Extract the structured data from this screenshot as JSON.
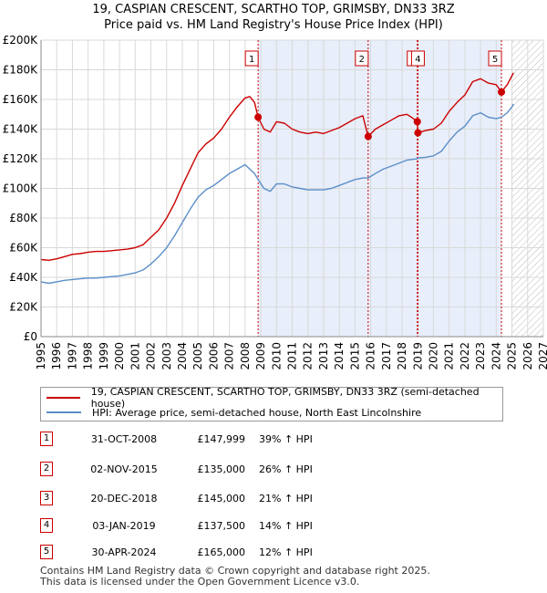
{
  "chart_data": {
    "type": "line",
    "title": "19, CASPIAN CRESCENT, SCARTHO TOP, GRIMSBY, DN33 3RZ",
    "subtitle": "Price paid vs. HM Land Registry's House Price Index (HPI)",
    "xlim": [
      1995,
      2027
    ],
    "ylim": [
      0,
      200000
    ],
    "x_ticks": [
      "1995",
      "1996",
      "1997",
      "1998",
      "1999",
      "2000",
      "2001",
      "2002",
      "2003",
      "2004",
      "2005",
      "2006",
      "2007",
      "2008",
      "2009",
      "2010",
      "2011",
      "2012",
      "2013",
      "2014",
      "2015",
      "2016",
      "2017",
      "2018",
      "2019",
      "2020",
      "2021",
      "2022",
      "2023",
      "2024",
      "2025",
      "2026",
      "2027"
    ],
    "y_ticks": [
      {
        "value": 0,
        "label": "£0"
      },
      {
        "value": 20000,
        "label": "£20K"
      },
      {
        "value": 40000,
        "label": "£40K"
      },
      {
        "value": 60000,
        "label": "£60K"
      },
      {
        "value": 80000,
        "label": "£80K"
      },
      {
        "value": 100000,
        "label": "£100K"
      },
      {
        "value": 120000,
        "label": "£120K"
      },
      {
        "value": 140000,
        "label": "£140K"
      },
      {
        "value": 160000,
        "label": "£160K"
      },
      {
        "value": 180000,
        "label": "£180K"
      },
      {
        "value": 200000,
        "label": "£200K"
      }
    ],
    "shaded_range": [
      2008.83,
      2024.33
    ],
    "hatched_from": 2025.0,
    "series": [
      {
        "name": "19, CASPIAN CRESCENT, SCARTHO TOP, GRIMSBY, DN33 3RZ (semi-detached house)",
        "color": "#cc0000",
        "points": [
          [
            1995.0,
            52000
          ],
          [
            1995.5,
            51500
          ],
          [
            1996.0,
            52500
          ],
          [
            1996.5,
            54000
          ],
          [
            1997.0,
            55500
          ],
          [
            1997.5,
            56000
          ],
          [
            1998.0,
            57000
          ],
          [
            1998.5,
            57500
          ],
          [
            1999.0,
            57500
          ],
          [
            1999.5,
            58000
          ],
          [
            2000.0,
            58500
          ],
          [
            2000.5,
            59000
          ],
          [
            2001.0,
            60000
          ],
          [
            2001.5,
            62000
          ],
          [
            2002.0,
            67000
          ],
          [
            2002.5,
            72000
          ],
          [
            2003.0,
            80000
          ],
          [
            2003.5,
            90000
          ],
          [
            2004.0,
            102000
          ],
          [
            2004.5,
            113000
          ],
          [
            2005.0,
            124000
          ],
          [
            2005.5,
            130000
          ],
          [
            2006.0,
            134000
          ],
          [
            2006.5,
            140000
          ],
          [
            2007.0,
            148000
          ],
          [
            2007.5,
            155000
          ],
          [
            2008.0,
            161000
          ],
          [
            2008.3,
            162000
          ],
          [
            2008.6,
            158000
          ],
          [
            2008.83,
            147999
          ],
          [
            2009.2,
            140000
          ],
          [
            2009.6,
            138000
          ],
          [
            2010.0,
            145000
          ],
          [
            2010.5,
            144000
          ],
          [
            2011.0,
            140000
          ],
          [
            2011.5,
            138000
          ],
          [
            2012.0,
            137000
          ],
          [
            2012.5,
            138000
          ],
          [
            2013.0,
            137000
          ],
          [
            2013.5,
            139000
          ],
          [
            2014.0,
            141000
          ],
          [
            2014.5,
            144000
          ],
          [
            2015.0,
            147000
          ],
          [
            2015.5,
            149000
          ],
          [
            2015.84,
            135000
          ],
          [
            2016.3,
            140000
          ],
          [
            2016.8,
            143000
          ],
          [
            2017.3,
            146000
          ],
          [
            2017.8,
            149000
          ],
          [
            2018.3,
            150000
          ],
          [
            2018.6,
            148000
          ],
          [
            2018.97,
            145000
          ],
          [
            2019.01,
            137500
          ],
          [
            2019.5,
            139000
          ],
          [
            2020.0,
            140000
          ],
          [
            2020.5,
            144000
          ],
          [
            2021.0,
            152000
          ],
          [
            2021.5,
            158000
          ],
          [
            2022.0,
            163000
          ],
          [
            2022.5,
            172000
          ],
          [
            2023.0,
            174000
          ],
          [
            2023.5,
            171000
          ],
          [
            2024.0,
            170000
          ],
          [
            2024.33,
            165000
          ],
          [
            2024.7,
            170000
          ],
          [
            2025.0,
            176000
          ],
          [
            2025.1,
            178000
          ]
        ]
      },
      {
        "name": "HPI: Average price, semi-detached house, North East Lincolnshire",
        "color": "#5b8ec9",
        "points": [
          [
            1995.0,
            37000
          ],
          [
            1995.5,
            36000
          ],
          [
            1996.0,
            37000
          ],
          [
            1996.5,
            38000
          ],
          [
            1997.0,
            38500
          ],
          [
            1997.5,
            39000
          ],
          [
            1998.0,
            39500
          ],
          [
            1998.5,
            39500
          ],
          [
            1999.0,
            40000
          ],
          [
            1999.5,
            40500
          ],
          [
            2000.0,
            41000
          ],
          [
            2000.5,
            42000
          ],
          [
            2001.0,
            43000
          ],
          [
            2001.5,
            45000
          ],
          [
            2002.0,
            49000
          ],
          [
            2002.5,
            54000
          ],
          [
            2003.0,
            60000
          ],
          [
            2003.5,
            68000
          ],
          [
            2004.0,
            77000
          ],
          [
            2004.5,
            86000
          ],
          [
            2005.0,
            94000
          ],
          [
            2005.5,
            99000
          ],
          [
            2006.0,
            102000
          ],
          [
            2006.5,
            106000
          ],
          [
            2007.0,
            110000
          ],
          [
            2007.5,
            113000
          ],
          [
            2008.0,
            116000
          ],
          [
            2008.3,
            113000
          ],
          [
            2008.6,
            110000
          ],
          [
            2008.83,
            106000
          ],
          [
            2009.2,
            100000
          ],
          [
            2009.6,
            98000
          ],
          [
            2010.0,
            103000
          ],
          [
            2010.5,
            103000
          ],
          [
            2011.0,
            101000
          ],
          [
            2011.5,
            100000
          ],
          [
            2012.0,
            99000
          ],
          [
            2012.5,
            99000
          ],
          [
            2013.0,
            99000
          ],
          [
            2013.5,
            100000
          ],
          [
            2014.0,
            102000
          ],
          [
            2014.5,
            104000
          ],
          [
            2015.0,
            106000
          ],
          [
            2015.5,
            107000
          ],
          [
            2015.84,
            107000
          ],
          [
            2016.3,
            110000
          ],
          [
            2016.8,
            113000
          ],
          [
            2017.3,
            115000
          ],
          [
            2017.8,
            117000
          ],
          [
            2018.3,
            119000
          ],
          [
            2018.6,
            119500
          ],
          [
            2018.97,
            120000
          ],
          [
            2019.01,
            120500
          ],
          [
            2019.5,
            121000
          ],
          [
            2020.0,
            122000
          ],
          [
            2020.5,
            125000
          ],
          [
            2021.0,
            132000
          ],
          [
            2021.5,
            138000
          ],
          [
            2022.0,
            142000
          ],
          [
            2022.5,
            149000
          ],
          [
            2023.0,
            151000
          ],
          [
            2023.5,
            148000
          ],
          [
            2024.0,
            147000
          ],
          [
            2024.33,
            148000
          ],
          [
            2024.7,
            151000
          ],
          [
            2025.0,
            155000
          ],
          [
            2025.1,
            157000
          ]
        ]
      }
    ],
    "sales": [
      {
        "num": "1",
        "x": 2008.83,
        "price": 147999
      },
      {
        "num": "2",
        "x": 2015.84,
        "price": 135000
      },
      {
        "num": "3",
        "x": 2018.97,
        "price": 145000
      },
      {
        "num": "4",
        "x": 2019.01,
        "price": 137500
      },
      {
        "num": "5",
        "x": 2024.33,
        "price": 165000
      }
    ]
  },
  "legend": {
    "red_label": "19, CASPIAN CRESCENT, SCARTHO TOP, GRIMSBY, DN33 3RZ (semi-detached house)",
    "blue_label": "HPI: Average price, semi-detached house, North East Lincolnshire"
  },
  "table": [
    {
      "num": "1",
      "date": "31-OCT-2008",
      "price": "£147,999",
      "hpi": "39% ↑ HPI"
    },
    {
      "num": "2",
      "date": "02-NOV-2015",
      "price": "£135,000",
      "hpi": "26% ↑ HPI"
    },
    {
      "num": "3",
      "date": "20-DEC-2018",
      "price": "£145,000",
      "hpi": "21% ↑ HPI"
    },
    {
      "num": "4",
      "date": "03-JAN-2019",
      "price": "£137,500",
      "hpi": "14% ↑ HPI"
    },
    {
      "num": "5",
      "date": "30-APR-2024",
      "price": "£165,000",
      "hpi": "12% ↑ HPI"
    }
  ],
  "footer": {
    "line1": "Contains HM Land Registry data © Crown copyright and database right 2025.",
    "line2": "This data is licensed under the Open Government Licence v3.0."
  },
  "colors": {
    "red": "#cc0000",
    "blue": "#5b8ec9",
    "shade": "#e8eefa",
    "grid": "#d9d9d9"
  }
}
